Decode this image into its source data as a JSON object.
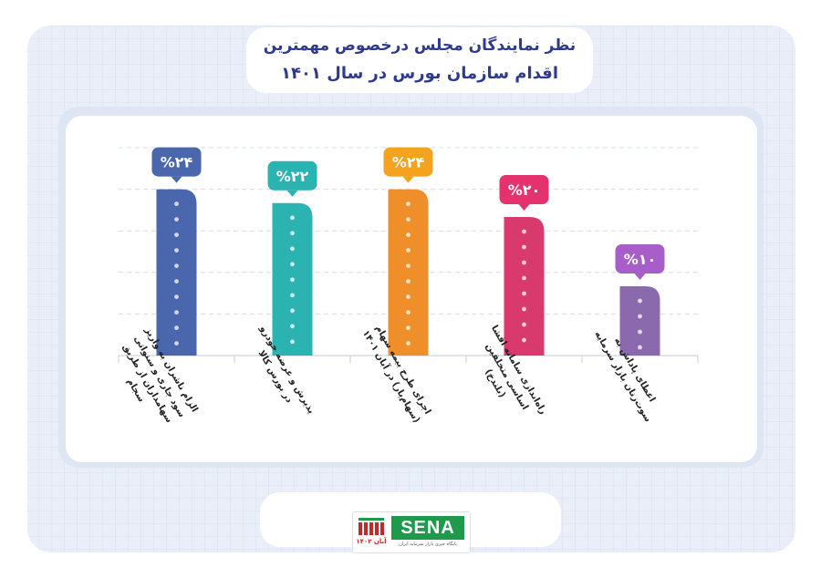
{
  "title_line1": "نظر نمایندگان مجلس درخصوص مهمترین",
  "title_line2": "اقدام سازمان بورس در سال ۱۴۰۱",
  "logo": {
    "brand": "SENA",
    "date": "آبان ۱۴۰۲",
    "tagline": "پایگاه خبری بازار سرمایه ایران",
    "brand_color": "#1e9a4a",
    "accent_color": "#c62828"
  },
  "chart_data": {
    "type": "bar",
    "categories": [
      "الزام ناشران به واریز سود جاری و سنواتی سهامداران از طریق سجام",
      "پذیرش و عرضه خودرو در بورس کالا",
      "اجرای طرح بیمه سهام (سهام‌یار) در آبان ۱۴۰۱",
      "راه‌اندازی سامانه افشا اساسی متخلفین (بلندخ)",
      "اعطای پاداش به سوت‌زنان بازار سرمایه"
    ],
    "values": [
      24,
      22,
      24,
      20,
      10
    ],
    "value_labels": [
      "%۲۴",
      "%۲۲",
      "%۲۴",
      "%۲۰",
      "%۱۰"
    ],
    "colors": [
      "#4a66ad",
      "#2bb3b1",
      "#ee8f2a",
      "#d83a6e",
      "#8a6aad"
    ],
    "label_colors": [
      "#4a66ad",
      "#2bb3b1",
      "#f5a31f",
      "#e4326f",
      "#a85ec9"
    ],
    "ylim": [
      0,
      30
    ],
    "grid": true
  }
}
